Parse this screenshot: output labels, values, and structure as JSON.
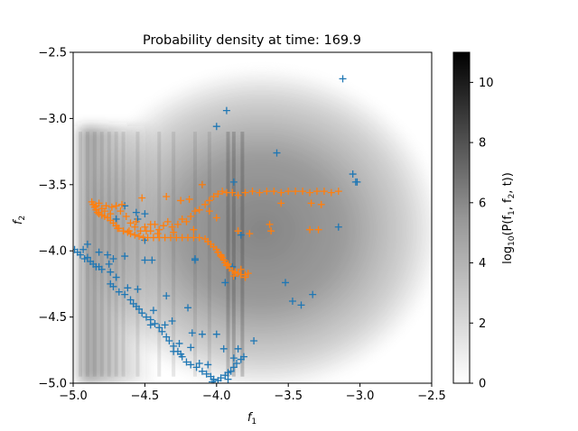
{
  "chart_data": {
    "type": "scatter",
    "title": "Probability density at time: 169.9",
    "xlabel_base": "f",
    "xlabel_sub": "1",
    "ylabel_base": "f",
    "ylabel_sub": "2",
    "xlim": [
      -5.0,
      -2.5
    ],
    "ylim": [
      -5.0,
      -2.5
    ],
    "x_ticks": [
      "−5.0",
      "−4.5",
      "−4.0",
      "−3.5",
      "−3.0",
      "−2.5"
    ],
    "y_ticks": [
      "−2.5",
      "−3.0",
      "−3.5",
      "−4.0",
      "−4.5",
      "−5.0"
    ],
    "x_tick_values": [
      -5.0,
      -4.5,
      -4.0,
      -3.5,
      -3.0,
      -2.5
    ],
    "y_tick_values": [
      -2.5,
      -3.0,
      -3.5,
      -4.0,
      -4.5,
      -5.0
    ],
    "background": "grayscale density heatmap (log10 P(f1,f2,t))",
    "marker": "+",
    "colorbar": {
      "label_prefix": "log",
      "label_sub": "10",
      "label_suffix": "(P(f",
      "label_mid": ", f",
      "label_end": ", t))",
      "range": [
        0,
        11
      ],
      "ticks": [
        "0",
        "2",
        "4",
        "6",
        "8",
        "10"
      ],
      "tick_values": [
        0,
        2,
        4,
        6,
        8,
        10
      ],
      "colormap": "Greys"
    },
    "series": [
      {
        "color": "#1f77b4",
        "points": [
          [
            -3.12,
            -2.7
          ],
          [
            -3.93,
            -2.94
          ],
          [
            -4.0,
            -3.06
          ],
          [
            -3.58,
            -3.26
          ],
          [
            -3.05,
            -3.42
          ],
          [
            -3.02,
            -3.48
          ],
          [
            -3.03,
            -3.48
          ],
          [
            -4.1,
            -3.5
          ],
          [
            -3.88,
            -3.48
          ],
          [
            -4.64,
            -3.66
          ],
          [
            -4.56,
            -3.71
          ],
          [
            -4.5,
            -3.72
          ],
          [
            -4.7,
            -3.76
          ],
          [
            -4.55,
            -3.76
          ],
          [
            -3.15,
            -3.82
          ],
          [
            -3.83,
            -3.88
          ],
          [
            -4.5,
            -3.92
          ],
          [
            -4.9,
            -3.95
          ],
          [
            -4.93,
            -3.99
          ],
          [
            -4.82,
            -4.01
          ],
          [
            -4.76,
            -4.03
          ],
          [
            -4.9,
            -4.05
          ],
          [
            -4.72,
            -4.06
          ],
          [
            -4.64,
            -4.04
          ],
          [
            -4.5,
            -4.07
          ],
          [
            -4.45,
            -4.07
          ],
          [
            -4.15,
            -4.06
          ],
          [
            -4.75,
            -4.1
          ],
          [
            -4.84,
            -4.12
          ],
          [
            -4.99,
            -3.99
          ],
          [
            -4.97,
            -4.01
          ],
          [
            -4.95,
            -4.03
          ],
          [
            -4.92,
            -4.06
          ],
          [
            -4.88,
            -4.08
          ],
          [
            -4.86,
            -4.1
          ],
          [
            -4.82,
            -4.12
          ],
          [
            -4.8,
            -4.14
          ],
          [
            -4.74,
            -4.16
          ],
          [
            -4.7,
            -4.2
          ],
          [
            -4.74,
            -4.25
          ],
          [
            -4.72,
            -4.27
          ],
          [
            -4.68,
            -4.31
          ],
          [
            -4.64,
            -4.33
          ],
          [
            -4.6,
            -4.37
          ],
          [
            -4.58,
            -4.4
          ],
          [
            -4.56,
            -4.42
          ],
          [
            -4.54,
            -4.44
          ],
          [
            -4.52,
            -4.47
          ],
          [
            -4.49,
            -4.5
          ],
          [
            -4.46,
            -4.52
          ],
          [
            -4.43,
            -4.55
          ],
          [
            -4.4,
            -4.58
          ],
          [
            -4.38,
            -4.61
          ],
          [
            -4.35,
            -4.65
          ],
          [
            -4.33,
            -4.68
          ],
          [
            -4.3,
            -4.72
          ],
          [
            -4.27,
            -4.76
          ],
          [
            -4.24,
            -4.8
          ],
          [
            -4.21,
            -4.84
          ],
          [
            -4.18,
            -4.86
          ],
          [
            -4.14,
            -4.88
          ],
          [
            -4.1,
            -4.91
          ],
          [
            -4.07,
            -4.93
          ],
          [
            -4.04,
            -4.95
          ],
          [
            -4.02,
            -4.97
          ],
          [
            -3.99,
            -4.98
          ],
          [
            -3.97,
            -4.96
          ],
          [
            -3.94,
            -4.94
          ],
          [
            -3.92,
            -4.92
          ],
          [
            -3.9,
            -4.91
          ],
          [
            -3.88,
            -4.88
          ],
          [
            -3.86,
            -4.85
          ],
          [
            -3.83,
            -4.82
          ],
          [
            -3.81,
            -4.8
          ],
          [
            -3.88,
            -4.81
          ],
          [
            -3.85,
            -4.74
          ],
          [
            -3.95,
            -4.74
          ],
          [
            -3.74,
            -4.68
          ],
          [
            -4.06,
            -4.86
          ],
          [
            -4.12,
            -4.85
          ],
          [
            -4.26,
            -4.7
          ],
          [
            -4.17,
            -4.62
          ],
          [
            -4.2,
            -4.43
          ],
          [
            -4.35,
            -4.34
          ],
          [
            -4.44,
            -4.45
          ],
          [
            -4.46,
            -4.56
          ],
          [
            -4.55,
            -4.29
          ],
          [
            -4.62,
            -4.28
          ],
          [
            -3.94,
            -4.24
          ],
          [
            -3.87,
            -4.19
          ],
          [
            -3.89,
            -4.12
          ],
          [
            -4.15,
            -4.07
          ],
          [
            -3.52,
            -4.24
          ],
          [
            -3.47,
            -4.38
          ],
          [
            -3.41,
            -4.41
          ],
          [
            -3.33,
            -4.33
          ],
          [
            -4.31,
            -4.53
          ],
          [
            -4.1,
            -4.63
          ],
          [
            -4.0,
            -4.63
          ],
          [
            -4.36,
            -4.56
          ],
          [
            -4.18,
            -4.73
          ],
          [
            -4.25,
            -4.78
          ],
          [
            -4.3,
            -4.76
          ],
          [
            -3.92,
            -4.97
          ],
          [
            -4.03,
            -4.99
          ]
        ]
      },
      {
        "color": "#ff7f0e",
        "points": [
          [
            -4.87,
            -3.63
          ],
          [
            -4.86,
            -3.65
          ],
          [
            -4.85,
            -3.67
          ],
          [
            -4.84,
            -3.69
          ],
          [
            -4.83,
            -3.71
          ],
          [
            -4.82,
            -3.72
          ],
          [
            -4.8,
            -3.73
          ],
          [
            -4.78,
            -3.74
          ],
          [
            -4.76,
            -3.75
          ],
          [
            -4.74,
            -3.77
          ],
          [
            -4.72,
            -3.79
          ],
          [
            -4.7,
            -3.81
          ],
          [
            -4.68,
            -3.83
          ],
          [
            -4.65,
            -3.85
          ],
          [
            -4.62,
            -3.86
          ],
          [
            -4.6,
            -3.87
          ],
          [
            -4.57,
            -3.88
          ],
          [
            -4.54,
            -3.89
          ],
          [
            -4.51,
            -3.9
          ],
          [
            -4.48,
            -3.9
          ],
          [
            -4.44,
            -3.9
          ],
          [
            -4.4,
            -3.9
          ],
          [
            -4.36,
            -3.9
          ],
          [
            -4.32,
            -3.9
          ],
          [
            -4.28,
            -3.9
          ],
          [
            -4.24,
            -3.9
          ],
          [
            -4.2,
            -3.9
          ],
          [
            -4.16,
            -3.9
          ],
          [
            -4.12,
            -3.9
          ],
          [
            -4.08,
            -3.91
          ],
          [
            -4.06,
            -3.93
          ],
          [
            -4.04,
            -3.95
          ],
          [
            -4.02,
            -3.97
          ],
          [
            -4.0,
            -3.99
          ],
          [
            -3.99,
            -4.01
          ],
          [
            -3.97,
            -4.03
          ],
          [
            -3.96,
            -4.05
          ],
          [
            -3.95,
            -4.07
          ],
          [
            -3.94,
            -4.09
          ],
          [
            -3.93,
            -4.11
          ],
          [
            -3.91,
            -4.13
          ],
          [
            -3.89,
            -4.15
          ],
          [
            -3.87,
            -4.16
          ],
          [
            -3.85,
            -4.17
          ],
          [
            -3.83,
            -4.18
          ],
          [
            -3.8,
            -4.18
          ],
          [
            -4.84,
            -3.66
          ],
          [
            -4.8,
            -3.68
          ],
          [
            -4.77,
            -3.66
          ],
          [
            -4.73,
            -3.67
          ],
          [
            -4.7,
            -3.66
          ],
          [
            -4.67,
            -3.7
          ],
          [
            -4.63,
            -3.74
          ],
          [
            -4.6,
            -3.79
          ],
          [
            -4.57,
            -3.82
          ],
          [
            -4.53,
            -3.85
          ],
          [
            -4.5,
            -3.82
          ],
          [
            -4.46,
            -3.8
          ],
          [
            -4.43,
            -3.8
          ],
          [
            -4.4,
            -3.84
          ],
          [
            -4.37,
            -3.81
          ],
          [
            -4.34,
            -3.78
          ],
          [
            -4.31,
            -3.82
          ],
          [
            -4.27,
            -3.8
          ],
          [
            -4.24,
            -3.76
          ],
          [
            -4.21,
            -3.78
          ],
          [
            -4.18,
            -3.74
          ],
          [
            -4.15,
            -3.7
          ],
          [
            -4.12,
            -3.69
          ],
          [
            -4.08,
            -3.65
          ],
          [
            -4.05,
            -3.62
          ],
          [
            -4.02,
            -3.59
          ],
          [
            -3.99,
            -3.57
          ],
          [
            -3.96,
            -3.55
          ],
          [
            -3.93,
            -3.56
          ],
          [
            -3.89,
            -3.56
          ],
          [
            -3.85,
            -3.58
          ],
          [
            -3.8,
            -3.56
          ],
          [
            -3.75,
            -3.55
          ],
          [
            -3.7,
            -3.56
          ],
          [
            -3.65,
            -3.55
          ],
          [
            -3.6,
            -3.55
          ],
          [
            -3.55,
            -3.56
          ],
          [
            -3.5,
            -3.55
          ],
          [
            -3.45,
            -3.55
          ],
          [
            -3.4,
            -3.55
          ],
          [
            -3.35,
            -3.56
          ],
          [
            -3.3,
            -3.55
          ],
          [
            -3.25,
            -3.55
          ],
          [
            -3.2,
            -3.56
          ],
          [
            -3.15,
            -3.55
          ],
          [
            -3.34,
            -3.64
          ],
          [
            -3.55,
            -3.64
          ],
          [
            -3.27,
            -3.65
          ],
          [
            -3.63,
            -3.8
          ],
          [
            -3.62,
            -3.85
          ],
          [
            -3.35,
            -3.84
          ],
          [
            -3.29,
            -3.84
          ],
          [
            -3.77,
            -3.87
          ],
          [
            -3.85,
            -3.85
          ],
          [
            -4.1,
            -3.5
          ],
          [
            -4.35,
            -3.59
          ],
          [
            -4.52,
            -3.6
          ],
          [
            -4.05,
            -3.7
          ],
          [
            -4.0,
            -3.75
          ],
          [
            -4.19,
            -3.61
          ],
          [
            -4.25,
            -3.62
          ],
          [
            -4.46,
            -3.85
          ],
          [
            -4.56,
            -3.78
          ],
          [
            -4.61,
            -3.85
          ],
          [
            -4.66,
            -3.65
          ],
          [
            -4.69,
            -3.83
          ],
          [
            -4.78,
            -3.7
          ],
          [
            -4.82,
            -3.64
          ],
          [
            -4.74,
            -3.72
          ],
          [
            -4.16,
            -3.84
          ],
          [
            -4.3,
            -3.86
          ],
          [
            -4.41,
            -3.87
          ],
          [
            -4.49,
            -3.85
          ],
          [
            -3.97,
            -4.04
          ],
          [
            -3.92,
            -4.1
          ],
          [
            -3.88,
            -4.19
          ],
          [
            -3.83,
            -4.14
          ],
          [
            -3.78,
            -4.17
          ],
          [
            -3.8,
            -4.2
          ]
        ]
      }
    ]
  }
}
